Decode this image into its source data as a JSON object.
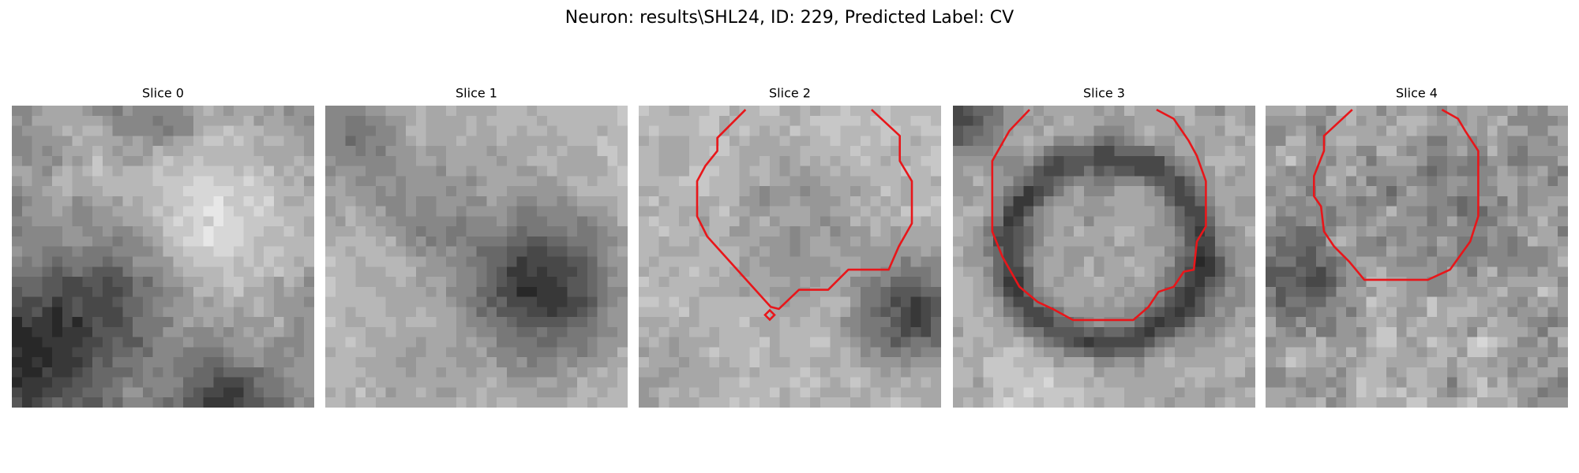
{
  "title": "Neuron: results\\SHL24, ID: 229, Predicted Label: CV",
  "panels": [
    {
      "title": "Slice 0"
    },
    {
      "title": "Slice 1"
    },
    {
      "title": "Slice 2"
    },
    {
      "title": "Slice 3"
    },
    {
      "title": "Slice 4"
    }
  ]
}
